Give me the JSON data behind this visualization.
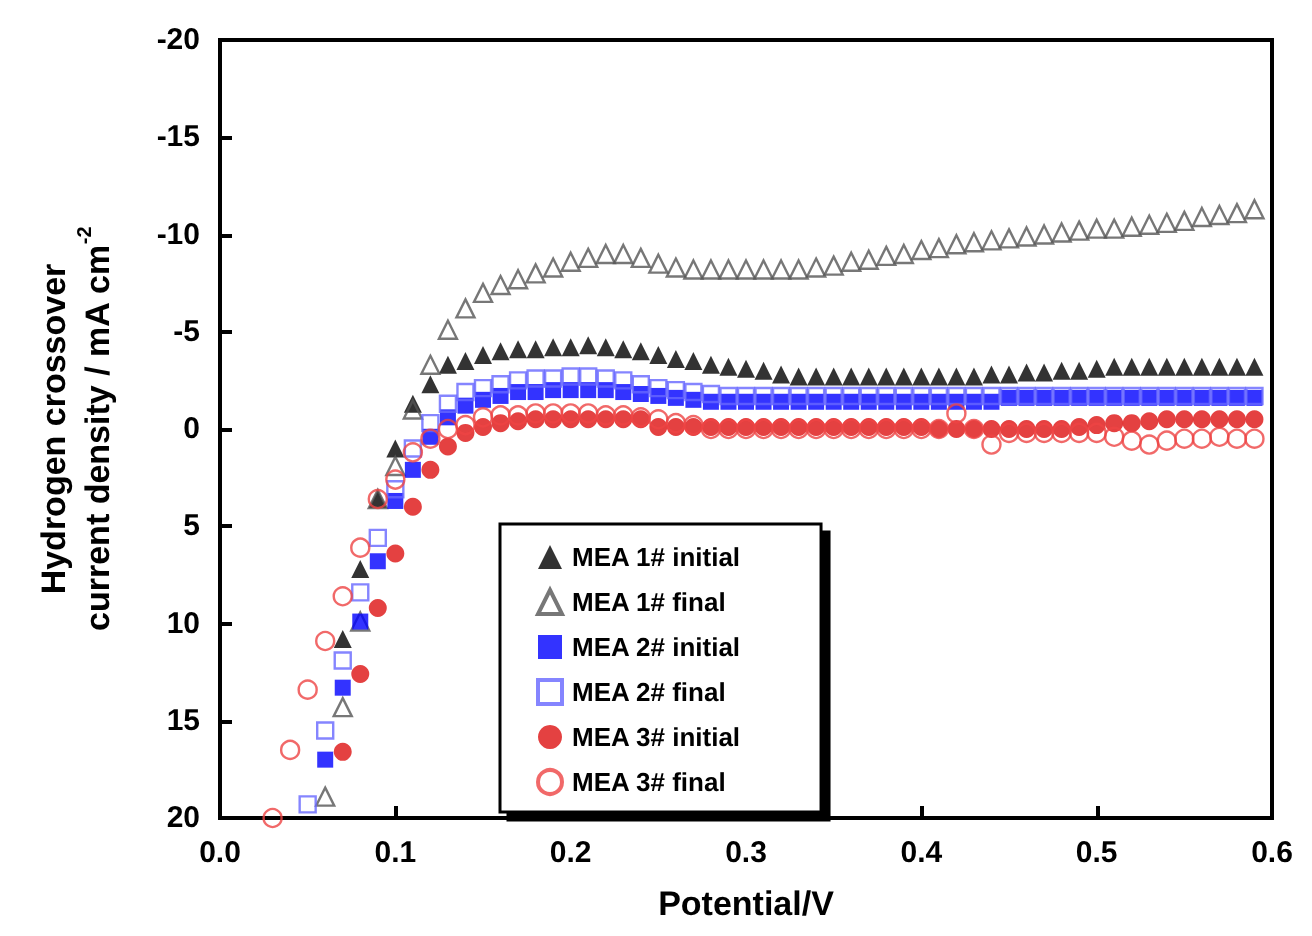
{
  "chart_data": {
    "type": "scatter",
    "xlabel": "Potential/V",
    "ylabel": "Hydrogen crossover\ncurrent density / mA cm$^{-2}$",
    "xlim": [
      0,
      0.6
    ],
    "xticks": [
      {
        "value": 0,
        "label": "0.0"
      },
      0.1,
      0.2,
      0.3,
      0.4,
      0.5,
      0.6
    ],
    "ylim": [
      20,
      -20
    ],
    "yticks": [
      20,
      15,
      10,
      5,
      0,
      -5,
      -10,
      -15,
      -20
    ],
    "grid": false,
    "legend": "bottom",
    "series": [
      {
        "name": "MEA 1# initial",
        "color": "#000000",
        "marker": "triangle",
        "x": [
          0.07,
          0.08,
          0.09,
          0.1,
          0.11,
          0.12,
          0.13,
          0.14,
          0.15,
          0.16,
          0.17,
          0.18,
          0.19,
          0.2,
          0.21,
          0.22,
          0.23,
          0.24,
          0.25,
          0.26,
          0.27,
          0.28,
          0.29,
          0.3,
          0.31,
          0.32,
          0.33,
          0.34,
          0.35,
          0.36,
          0.37,
          0.38,
          0.39,
          0.4,
          0.41,
          0.42,
          0.43,
          0.44,
          0.45,
          0.46,
          0.47,
          0.48,
          0.49,
          0.5,
          0.51,
          0.52,
          0.53,
          0.54,
          0.55,
          0.56,
          0.57,
          0.58,
          0.59
        ],
        "values": [
          10.8,
          7.2,
          3.6,
          1.0,
          -1.3,
          -2.3,
          -3.3,
          -3.5,
          -3.8,
          -4.0,
          -4.1,
          -4.1,
          -4.2,
          -4.2,
          -4.3,
          -4.2,
          -4.1,
          -4.0,
          -3.8,
          -3.6,
          -3.5,
          -3.3,
          -3.2,
          -3.1,
          -3.0,
          -2.8,
          -2.7,
          -2.7,
          -2.7,
          -2.7,
          -2.7,
          -2.7,
          -2.7,
          -2.7,
          -2.7,
          -2.7,
          -2.7,
          -2.8,
          -2.8,
          -2.9,
          -2.9,
          -3.0,
          -3.0,
          -3.1,
          -3.2,
          -3.2,
          -3.2,
          -3.2,
          -3.2,
          -3.2,
          -3.2,
          -3.2,
          -3.2
        ]
      },
      {
        "name": "MEA 1# final",
        "color": "#555555",
        "marker": "triangle",
        "x": [
          0.06,
          0.07,
          0.08,
          0.09,
          0.1,
          0.11,
          0.12,
          0.13,
          0.14,
          0.15,
          0.16,
          0.17,
          0.18,
          0.19,
          0.2,
          0.21,
          0.22,
          0.23,
          0.24,
          0.25,
          0.26,
          0.27,
          0.28,
          0.29,
          0.3,
          0.31,
          0.32,
          0.33,
          0.34,
          0.35,
          0.36,
          0.37,
          0.38,
          0.39,
          0.4,
          0.41,
          0.42,
          0.43,
          0.44,
          0.45,
          0.46,
          0.47,
          0.48,
          0.49,
          0.5,
          0.51,
          0.52,
          0.53,
          0.54,
          0.55,
          0.56,
          0.57,
          0.58,
          0.59
        ],
        "values": [
          18.9,
          14.3,
          9.9,
          3.6,
          1.9,
          -1.0,
          -3.3,
          -5.1,
          -6.2,
          -7.0,
          -7.4,
          -7.7,
          -8.0,
          -8.3,
          -8.6,
          -8.8,
          -9.0,
          -9.0,
          -8.8,
          -8.5,
          -8.3,
          -8.2,
          -8.2,
          -8.2,
          -8.2,
          -8.2,
          -8.2,
          -8.2,
          -8.3,
          -8.4,
          -8.6,
          -8.7,
          -8.9,
          -9.0,
          -9.2,
          -9.3,
          -9.5,
          -9.6,
          -9.7,
          -9.8,
          -9.9,
          -10.0,
          -10.1,
          -10.2,
          -10.3,
          -10.3,
          -10.4,
          -10.5,
          -10.6,
          -10.7,
          -10.9,
          -11.0,
          -11.1,
          -11.3
        ]
      },
      {
        "name": "MEA 2# initial",
        "color": "#0000ff",
        "marker": "square",
        "x": [
          0.06,
          0.07,
          0.08,
          0.09,
          0.1,
          0.11,
          0.12,
          0.13,
          0.14,
          0.15,
          0.16,
          0.17,
          0.18,
          0.19,
          0.2,
          0.21,
          0.22,
          0.23,
          0.24,
          0.25,
          0.26,
          0.27,
          0.28,
          0.29,
          0.3,
          0.31,
          0.32,
          0.33,
          0.34,
          0.35,
          0.36,
          0.37,
          0.38,
          0.39,
          0.4,
          0.41,
          0.42,
          0.43,
          0.44,
          0.45,
          0.46,
          0.47,
          0.48,
          0.49,
          0.5,
          0.51,
          0.52,
          0.53,
          0.54,
          0.55,
          0.56,
          0.57,
          0.58,
          0.59
        ],
        "values": [
          17.0,
          13.3,
          9.9,
          6.8,
          3.7,
          2.1,
          0.4,
          -0.6,
          -1.2,
          -1.5,
          -1.7,
          -1.9,
          -1.9,
          -2.0,
          -2.0,
          -2.0,
          -2.0,
          -1.9,
          -1.8,
          -1.7,
          -1.6,
          -1.5,
          -1.4,
          -1.4,
          -1.4,
          -1.4,
          -1.4,
          -1.4,
          -1.4,
          -1.4,
          -1.4,
          -1.4,
          -1.4,
          -1.4,
          -1.4,
          -1.4,
          -1.4,
          -1.4,
          -1.4,
          -1.6,
          -1.6,
          -1.6,
          -1.6,
          -1.6,
          -1.6,
          -1.6,
          -1.6,
          -1.6,
          -1.6,
          -1.6,
          -1.6,
          -1.6,
          -1.6,
          -1.6
        ]
      },
      {
        "name": "MEA 2# final",
        "color": "#6666ff",
        "marker": "square",
        "x": [
          0.05,
          0.06,
          0.07,
          0.08,
          0.09,
          0.1,
          0.11,
          0.12,
          0.13,
          0.14,
          0.15,
          0.16,
          0.17,
          0.18,
          0.19,
          0.2,
          0.21,
          0.22,
          0.23,
          0.24,
          0.25,
          0.26,
          0.27,
          0.28,
          0.29,
          0.3,
          0.31,
          0.32,
          0.33,
          0.34,
          0.35,
          0.36,
          0.37,
          0.38,
          0.39,
          0.4,
          0.41,
          0.42,
          0.43,
          0.44,
          0.45,
          0.46,
          0.47,
          0.48,
          0.49,
          0.5,
          0.51,
          0.52,
          0.53,
          0.54,
          0.55,
          0.56,
          0.57,
          0.58,
          0.59
        ],
        "values": [
          19.3,
          15.5,
          11.9,
          8.4,
          5.6,
          3.1,
          1.0,
          -0.3,
          -1.3,
          -1.9,
          -2.1,
          -2.3,
          -2.5,
          -2.6,
          -2.6,
          -2.7,
          -2.7,
          -2.6,
          -2.5,
          -2.3,
          -2.1,
          -2.0,
          -1.9,
          -1.8,
          -1.7,
          -1.7,
          -1.7,
          -1.7,
          -1.7,
          -1.7,
          -1.7,
          -1.7,
          -1.7,
          -1.7,
          -1.7,
          -1.7,
          -1.7,
          -1.7,
          -1.7,
          -1.7,
          -1.7,
          -1.7,
          -1.7,
          -1.7,
          -1.7,
          -1.7,
          -1.7,
          -1.7,
          -1.7,
          -1.7,
          -1.7,
          -1.7,
          -1.7,
          -1.7,
          -1.7
        ]
      },
      {
        "name": "MEA 3# initial",
        "color": "#dd1111",
        "marker": "circle",
        "x": [
          0.07,
          0.08,
          0.09,
          0.1,
          0.11,
          0.12,
          0.13,
          0.14,
          0.15,
          0.16,
          0.17,
          0.18,
          0.19,
          0.2,
          0.21,
          0.22,
          0.23,
          0.24,
          0.25,
          0.26,
          0.27,
          0.28,
          0.29,
          0.3,
          0.31,
          0.32,
          0.33,
          0.34,
          0.35,
          0.36,
          0.37,
          0.38,
          0.39,
          0.4,
          0.41,
          0.42,
          0.43,
          0.44,
          0.45,
          0.46,
          0.47,
          0.48,
          0.49,
          0.5,
          0.51,
          0.52,
          0.53,
          0.54,
          0.55,
          0.56,
          0.57,
          0.58,
          0.59
        ],
        "values": [
          16.6,
          12.6,
          9.2,
          6.4,
          4.0,
          2.1,
          0.9,
          0.2,
          -0.1,
          -0.3,
          -0.4,
          -0.5,
          -0.5,
          -0.5,
          -0.5,
          -0.5,
          -0.5,
          -0.5,
          -0.1,
          -0.1,
          -0.1,
          -0.1,
          -0.1,
          -0.1,
          -0.1,
          -0.1,
          -0.1,
          -0.1,
          -0.1,
          -0.1,
          -0.1,
          -0.1,
          -0.1,
          -0.1,
          0,
          0,
          0,
          0,
          0,
          0,
          0,
          0,
          -0.1,
          -0.2,
          -0.3,
          -0.3,
          -0.4,
          -0.5,
          -0.5,
          -0.5,
          -0.5,
          -0.5,
          -0.5
        ]
      },
      {
        "name": "MEA 3# final",
        "color": "#ee4444",
        "marker": "circle",
        "x": [
          0.03,
          0.04,
          0.05,
          0.06,
          0.07,
          0.08,
          0.09,
          0.1,
          0.11,
          0.12,
          0.13,
          0.14,
          0.15,
          0.16,
          0.17,
          0.18,
          0.19,
          0.2,
          0.21,
          0.22,
          0.23,
          0.24,
          0.25,
          0.26,
          0.27,
          0.28,
          0.29,
          0.3,
          0.31,
          0.32,
          0.33,
          0.34,
          0.35,
          0.36,
          0.37,
          0.38,
          0.39,
          0.4,
          0.41,
          0.42,
          0.43,
          0.44,
          0.45,
          0.46,
          0.47,
          0.48,
          0.49,
          0.5,
          0.51,
          0.52,
          0.53,
          0.54,
          0.55,
          0.56,
          0.57,
          0.58,
          0.59
        ],
        "values": [
          20.0,
          16.5,
          13.4,
          10.9,
          8.6,
          6.1,
          3.6,
          2.6,
          1.2,
          0.5,
          0.0,
          -0.2,
          -0.6,
          -0.7,
          -0.7,
          -0.8,
          -0.8,
          -0.8,
          -0.8,
          -0.7,
          -0.7,
          -0.6,
          -0.5,
          -0.3,
          -0.2,
          0,
          0,
          0,
          0,
          0,
          0,
          0,
          0,
          0,
          0,
          0,
          0,
          0,
          0,
          -0.8,
          0,
          0.8,
          0.2,
          0.2,
          0.2,
          0.2,
          0.2,
          0.2,
          0.4,
          0.6,
          0.8,
          0.6,
          0.5,
          0.5,
          0.4,
          0.5,
          0.5
        ]
      }
    ]
  }
}
